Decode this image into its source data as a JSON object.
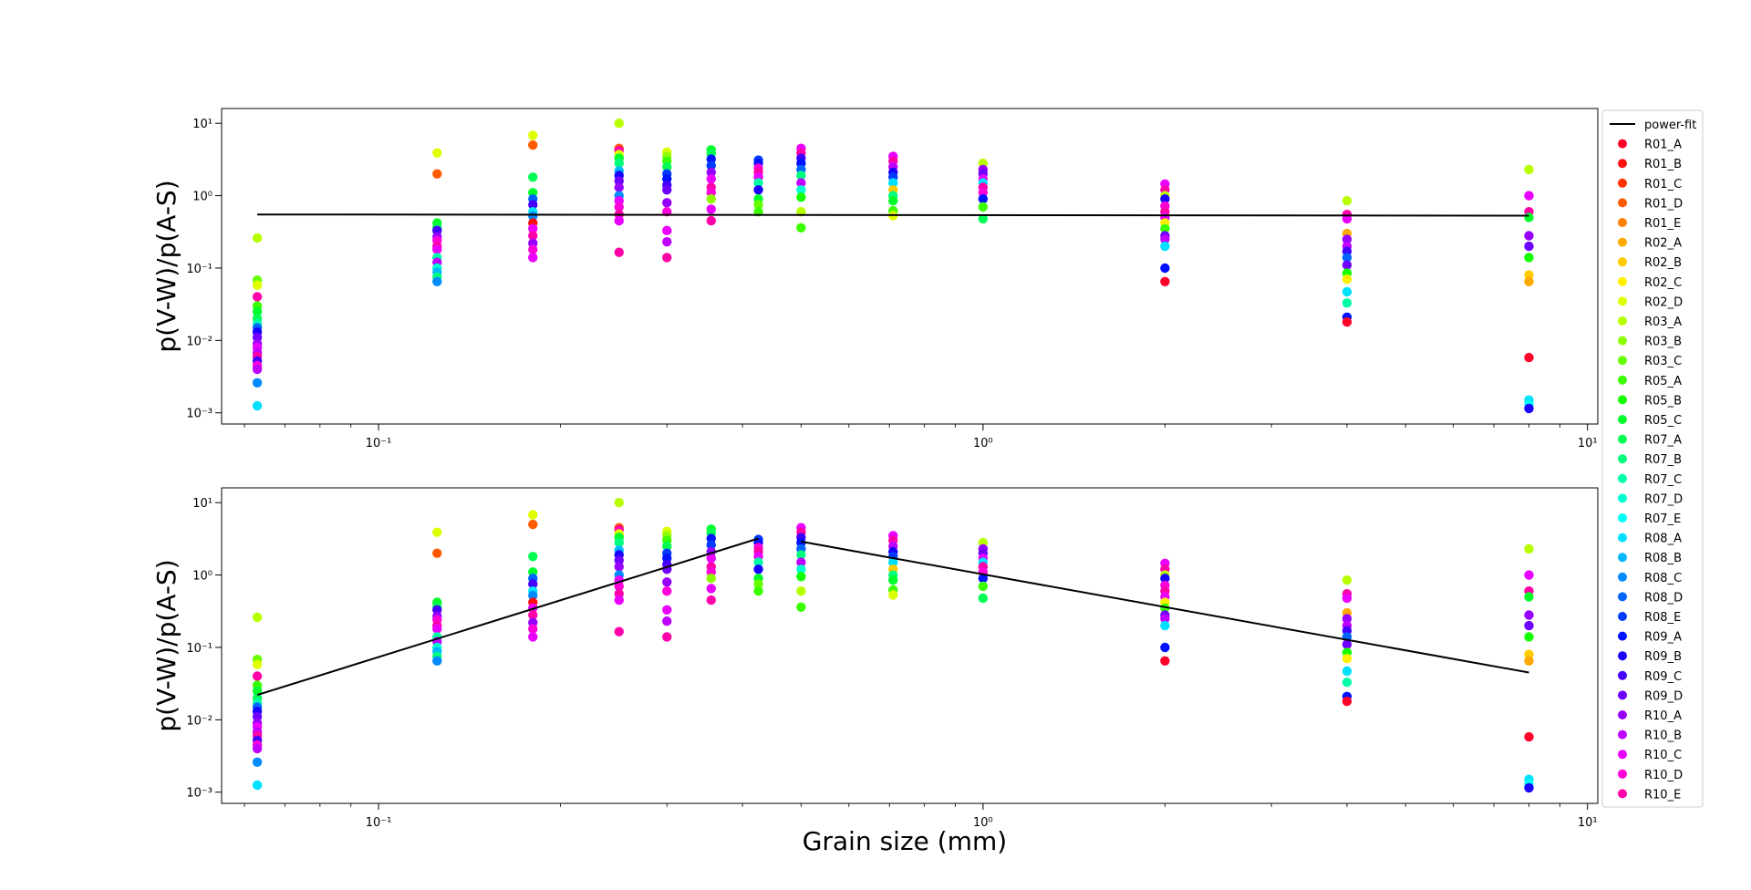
{
  "chart_data": {
    "type": "scatter",
    "legend_position": "outside-right",
    "xlabel": "Grain size (mm)",
    "x_scale": "log",
    "y_scale": "log",
    "grid": false,
    "fit_line": {
      "name": "power-fit",
      "color": "#000000"
    },
    "x_categories": [
      0.063,
      0.125,
      0.18,
      0.25,
      0.3,
      0.355,
      0.425,
      0.5,
      0.71,
      1.0,
      2.0,
      4.0,
      8.0
    ],
    "samples": [
      {
        "name": "R01_A",
        "color": "#ff0029"
      },
      {
        "name": "R01_B",
        "color": "#ff1010"
      },
      {
        "name": "R01_C",
        "color": "#ff3300"
      },
      {
        "name": "R01_D",
        "color": "#ff5a00"
      },
      {
        "name": "R01_E",
        "color": "#ff8000"
      },
      {
        "name": "R02_A",
        "color": "#ffaa00"
      },
      {
        "name": "R02_B",
        "color": "#ffcc00"
      },
      {
        "name": "R02_C",
        "color": "#fff000"
      },
      {
        "name": "R02_D",
        "color": "#ddff00"
      },
      {
        "name": "R03_A",
        "color": "#b8ff00"
      },
      {
        "name": "R03_B",
        "color": "#8eff00"
      },
      {
        "name": "R03_C",
        "color": "#66ff00"
      },
      {
        "name": "R05_A",
        "color": "#3cff00"
      },
      {
        "name": "R05_B",
        "color": "#14ff00"
      },
      {
        "name": "R05_C",
        "color": "#00ff2a"
      },
      {
        "name": "R07_A",
        "color": "#00ff52"
      },
      {
        "name": "R07_B",
        "color": "#00ff7c"
      },
      {
        "name": "R07_C",
        "color": "#00ffa6"
      },
      {
        "name": "R07_D",
        "color": "#00ffd0"
      },
      {
        "name": "R07_E",
        "color": "#00fff5"
      },
      {
        "name": "R08_A",
        "color": "#00e0ff"
      },
      {
        "name": "R08_B",
        "color": "#00b8ff"
      },
      {
        "name": "R08_C",
        "color": "#008cff"
      },
      {
        "name": "R08_D",
        "color": "#0064ff"
      },
      {
        "name": "R08_E",
        "color": "#003cff"
      },
      {
        "name": "R09_A",
        "color": "#0012ff"
      },
      {
        "name": "R09_B",
        "color": "#1a00ff"
      },
      {
        "name": "R09_C",
        "color": "#4400ff"
      },
      {
        "name": "R09_D",
        "color": "#6e00ff"
      },
      {
        "name": "R10_A",
        "color": "#9600ff"
      },
      {
        "name": "R10_B",
        "color": "#c000ff"
      },
      {
        "name": "R10_C",
        "color": "#ea00ff"
      },
      {
        "name": "R10_D",
        "color": "#ff00d8"
      },
      {
        "name": "R10_E",
        "color": "#ff00a8"
      }
    ],
    "subplots": [
      {
        "ylabel": "p(V-W)/p(A-S)",
        "xlim": [
          0.055,
          10.4
        ],
        "ylim": [
          0.0007,
          16
        ],
        "x_ticks": [
          {
            "value": 0.1,
            "label": "10⁻¹"
          },
          {
            "value": 1,
            "label": "10⁰"
          },
          {
            "value": 10,
            "label": "10¹"
          }
        ],
        "y_ticks": [
          {
            "value": 0.001,
            "label": "10⁻³"
          },
          {
            "value": 0.01,
            "label": "10⁻²"
          },
          {
            "value": 0.1,
            "label": "10⁻¹"
          },
          {
            "value": 1,
            "label": "10⁰"
          },
          {
            "value": 10,
            "label": "10¹"
          }
        ],
        "fit_segments": [
          [
            [
              0.063,
              0.55
            ],
            [
              8.0,
              0.53
            ]
          ]
        ]
      },
      {
        "ylabel": "p(V-W)/p(A-S)",
        "xlabel": "Grain size (mm)",
        "xlim": [
          0.055,
          10.4
        ],
        "ylim": [
          0.0007,
          16
        ],
        "x_ticks": [
          {
            "value": 0.1,
            "label": "10⁻¹"
          },
          {
            "value": 1,
            "label": "10⁰"
          },
          {
            "value": 10,
            "label": "10¹"
          }
        ],
        "y_ticks": [
          {
            "value": 0.001,
            "label": "10⁻³"
          },
          {
            "value": 0.01,
            "label": "10⁻²"
          },
          {
            "value": 0.1,
            "label": "10⁻¹"
          },
          {
            "value": 1,
            "label": "10⁰"
          },
          {
            "value": 10,
            "label": "10¹"
          }
        ],
        "fit_segments": [
          [
            [
              0.063,
              0.022
            ],
            [
              0.425,
              3.2
            ]
          ],
          [
            [
              0.5,
              2.9
            ],
            [
              8.0,
              0.045
            ]
          ]
        ]
      }
    ],
    "points": [
      [
        0.063,
        0.26,
        "R03_A"
      ],
      [
        0.063,
        0.068,
        "R03_C"
      ],
      [
        0.063,
        0.058,
        "R02_D"
      ],
      [
        0.063,
        0.04,
        "R10_E"
      ],
      [
        0.063,
        0.03,
        "R05_A"
      ],
      [
        0.063,
        0.025,
        "R05_C"
      ],
      [
        0.063,
        0.02,
        "R07_A"
      ],
      [
        0.063,
        0.017,
        "R07_C"
      ],
      [
        0.063,
        0.015,
        "R08_D"
      ],
      [
        0.063,
        0.013,
        "R09_B"
      ],
      [
        0.063,
        0.011,
        "R09_D"
      ],
      [
        0.063,
        0.009,
        "R10_A"
      ],
      [
        0.063,
        0.008,
        "R10_C"
      ],
      [
        0.063,
        0.0068,
        "R10_B"
      ],
      [
        0.063,
        0.006,
        "R10_E"
      ],
      [
        0.063,
        0.0052,
        "R09_C"
      ],
      [
        0.063,
        0.0045,
        "R10_D"
      ],
      [
        0.063,
        0.004,
        "R10_B"
      ],
      [
        0.063,
        0.0026,
        "R08_C"
      ],
      [
        0.063,
        0.00125,
        "R08_A"
      ],
      [
        0.125,
        3.9,
        "R02_D"
      ],
      [
        0.125,
        2.0,
        "R01_D"
      ],
      [
        0.125,
        0.42,
        "R05_C"
      ],
      [
        0.125,
        0.36,
        "R07_A"
      ],
      [
        0.125,
        0.33,
        "R09_C"
      ],
      [
        0.125,
        0.27,
        "R10_A"
      ],
      [
        0.125,
        0.24,
        "R10_D"
      ],
      [
        0.125,
        0.2,
        "R10_E"
      ],
      [
        0.125,
        0.18,
        "R10_C"
      ],
      [
        0.125,
        0.14,
        "R07_C"
      ],
      [
        0.125,
        0.12,
        "R10_B"
      ],
      [
        0.125,
        0.1,
        "R07_D"
      ],
      [
        0.125,
        0.088,
        "R08_B"
      ],
      [
        0.125,
        0.075,
        "R07_B"
      ],
      [
        0.125,
        0.065,
        "R08_C"
      ],
      [
        0.18,
        6.8,
        "R02_D"
      ],
      [
        0.18,
        5.0,
        "R01_D"
      ],
      [
        0.18,
        1.8,
        "R07_A"
      ],
      [
        0.18,
        1.1,
        "R05_C"
      ],
      [
        0.18,
        0.9,
        "R08_D"
      ],
      [
        0.18,
        0.75,
        "R09_C"
      ],
      [
        0.18,
        0.6,
        "R08_A"
      ],
      [
        0.18,
        0.52,
        "R08_C"
      ],
      [
        0.18,
        0.42,
        "R01_B"
      ],
      [
        0.18,
        0.35,
        "R10_C"
      ],
      [
        0.18,
        0.28,
        "R10_E"
      ],
      [
        0.18,
        0.22,
        "R10_A"
      ],
      [
        0.18,
        0.18,
        "R10_D"
      ],
      [
        0.18,
        0.14,
        "R10_C"
      ],
      [
        0.25,
        10.0,
        "R03_A"
      ],
      [
        0.25,
        4.5,
        "R01_D"
      ],
      [
        0.25,
        4.2,
        "R10_E"
      ],
      [
        0.25,
        3.7,
        "R02_D"
      ],
      [
        0.25,
        3.3,
        "R05_C"
      ],
      [
        0.25,
        2.8,
        "R07_B"
      ],
      [
        0.25,
        2.2,
        "R08_B"
      ],
      [
        0.25,
        1.9,
        "R09_B"
      ],
      [
        0.25,
        1.6,
        "R09_D"
      ],
      [
        0.25,
        1.3,
        "R10_A"
      ],
      [
        0.25,
        1.0,
        "R08_C"
      ],
      [
        0.25,
        0.85,
        "R10_C"
      ],
      [
        0.25,
        0.7,
        "R10_D"
      ],
      [
        0.25,
        0.55,
        "R10_E"
      ],
      [
        0.25,
        0.45,
        "R10_C"
      ],
      [
        0.25,
        0.165,
        "R10_E"
      ],
      [
        0.3,
        4.0,
        "R02_D"
      ],
      [
        0.3,
        3.5,
        "R03_B"
      ],
      [
        0.3,
        3.0,
        "R05_A"
      ],
      [
        0.3,
        2.5,
        "R07_A"
      ],
      [
        0.3,
        2.0,
        "R08_E"
      ],
      [
        0.3,
        1.7,
        "R09_A"
      ],
      [
        0.3,
        1.4,
        "R09_C"
      ],
      [
        0.3,
        1.2,
        "R09_D"
      ],
      [
        0.3,
        0.8,
        "R10_A"
      ],
      [
        0.3,
        0.6,
        "R10_D"
      ],
      [
        0.3,
        0.33,
        "R10_C"
      ],
      [
        0.3,
        0.23,
        "R10_B"
      ],
      [
        0.3,
        0.14,
        "R10_E"
      ],
      [
        0.355,
        4.3,
        "R05_C"
      ],
      [
        0.355,
        3.8,
        "R07_A"
      ],
      [
        0.355,
        3.2,
        "R09_A"
      ],
      [
        0.355,
        2.6,
        "R08_E"
      ],
      [
        0.355,
        2.1,
        "R10_A"
      ],
      [
        0.355,
        1.7,
        "R10_C"
      ],
      [
        0.355,
        1.3,
        "R10_E"
      ],
      [
        0.355,
        1.1,
        "R10_D"
      ],
      [
        0.355,
        0.9,
        "R03_B"
      ],
      [
        0.355,
        0.65,
        "R10_C"
      ],
      [
        0.355,
        0.45,
        "R10_E"
      ],
      [
        0.425,
        3.1,
        "R08_E"
      ],
      [
        0.425,
        2.8,
        "R09_A"
      ],
      [
        0.425,
        2.4,
        "R10_D"
      ],
      [
        0.425,
        2.1,
        "R10_E"
      ],
      [
        0.425,
        1.8,
        "R10_C"
      ],
      [
        0.425,
        1.5,
        "R07_C"
      ],
      [
        0.425,
        1.2,
        "R09_B"
      ],
      [
        0.425,
        0.9,
        "R05_C"
      ],
      [
        0.425,
        0.75,
        "R03_C"
      ],
      [
        0.425,
        0.6,
        "R05_A"
      ],
      [
        0.5,
        4.5,
        "R10_C"
      ],
      [
        0.5,
        3.9,
        "R10_E"
      ],
      [
        0.5,
        3.3,
        "R09_C"
      ],
      [
        0.5,
        2.8,
        "R09_A"
      ],
      [
        0.5,
        2.3,
        "R08_D"
      ],
      [
        0.5,
        1.9,
        "R07_B"
      ],
      [
        0.5,
        1.5,
        "R10_B"
      ],
      [
        0.5,
        1.2,
        "R07_D"
      ],
      [
        0.5,
        0.95,
        "R05_B"
      ],
      [
        0.5,
        0.6,
        "R03_A"
      ],
      [
        0.5,
        0.36,
        "R05_A"
      ],
      [
        0.71,
        3.5,
        "R10_C"
      ],
      [
        0.71,
        3.0,
        "R10_E"
      ],
      [
        0.71,
        2.5,
        "R10_B"
      ],
      [
        0.71,
        2.1,
        "R09_B"
      ],
      [
        0.71,
        1.8,
        "R08_E"
      ],
      [
        0.71,
        1.5,
        "R08_A"
      ],
      [
        0.71,
        1.2,
        "R02_B"
      ],
      [
        0.71,
        1.0,
        "R07_B"
      ],
      [
        0.71,
        0.85,
        "R05_C"
      ],
      [
        0.71,
        0.62,
        "R05_A"
      ],
      [
        0.71,
        0.53,
        "R02_D"
      ],
      [
        1.0,
        2.8,
        "R03_A"
      ],
      [
        1.0,
        2.3,
        "R10_A"
      ],
      [
        1.0,
        2.0,
        "R09_D"
      ],
      [
        1.0,
        1.7,
        "R10_C"
      ],
      [
        1.0,
        1.5,
        "R08_A"
      ],
      [
        1.0,
        1.3,
        "R10_E"
      ],
      [
        1.0,
        1.1,
        "R10_D"
      ],
      [
        1.0,
        0.9,
        "R09_A"
      ],
      [
        1.0,
        0.7,
        "R05_A"
      ],
      [
        1.0,
        0.48,
        "R07_A"
      ],
      [
        2.0,
        1.45,
        "R10_C"
      ],
      [
        2.0,
        1.2,
        "R10_E"
      ],
      [
        2.0,
        1.0,
        "R03_A"
      ],
      [
        2.0,
        0.9,
        "R09_B"
      ],
      [
        2.0,
        0.72,
        "R10_D"
      ],
      [
        2.0,
        0.6,
        "R10_E"
      ],
      [
        2.0,
        0.5,
        "R10_C"
      ],
      [
        2.0,
        0.42,
        "R02_C"
      ],
      [
        2.0,
        0.35,
        "R05_A"
      ],
      [
        2.0,
        0.28,
        "R09_D"
      ],
      [
        2.0,
        0.25,
        "R10_B"
      ],
      [
        2.0,
        0.2,
        "R08_A"
      ],
      [
        2.0,
        0.1,
        "R09_A"
      ],
      [
        2.0,
        0.065,
        "R01_A"
      ],
      [
        4.0,
        0.85,
        "R03_A"
      ],
      [
        4.0,
        0.55,
        "R10_E"
      ],
      [
        4.0,
        0.48,
        "R10_C"
      ],
      [
        4.0,
        0.3,
        "R02_A"
      ],
      [
        4.0,
        0.25,
        "R10_A"
      ],
      [
        4.0,
        0.2,
        "R10_B"
      ],
      [
        4.0,
        0.17,
        "R09_C"
      ],
      [
        4.0,
        0.14,
        "R08_D"
      ],
      [
        4.0,
        0.11,
        "R09_D"
      ],
      [
        4.0,
        0.085,
        "R05_B"
      ],
      [
        4.0,
        0.07,
        "R02_C"
      ],
      [
        4.0,
        0.047,
        "R08_A"
      ],
      [
        4.0,
        0.033,
        "R07_C"
      ],
      [
        4.0,
        0.021,
        "R09_A"
      ],
      [
        4.0,
        0.018,
        "R01_A"
      ],
      [
        8.0,
        2.3,
        "R03_A"
      ],
      [
        8.0,
        1.0,
        "R10_C"
      ],
      [
        8.0,
        0.6,
        "R10_E"
      ],
      [
        8.0,
        0.5,
        "R05_C"
      ],
      [
        8.0,
        0.28,
        "R10_A"
      ],
      [
        8.0,
        0.2,
        "R09_D"
      ],
      [
        8.0,
        0.14,
        "R05_B"
      ],
      [
        8.0,
        0.08,
        "R02_B"
      ],
      [
        8.0,
        0.065,
        "R02_A"
      ],
      [
        8.0,
        0.0058,
        "R01_A"
      ],
      [
        8.0,
        0.0015,
        "R08_A"
      ],
      [
        8.0,
        0.0013,
        "R07_E"
      ],
      [
        8.0,
        0.00115,
        "R09_B"
      ]
    ]
  }
}
